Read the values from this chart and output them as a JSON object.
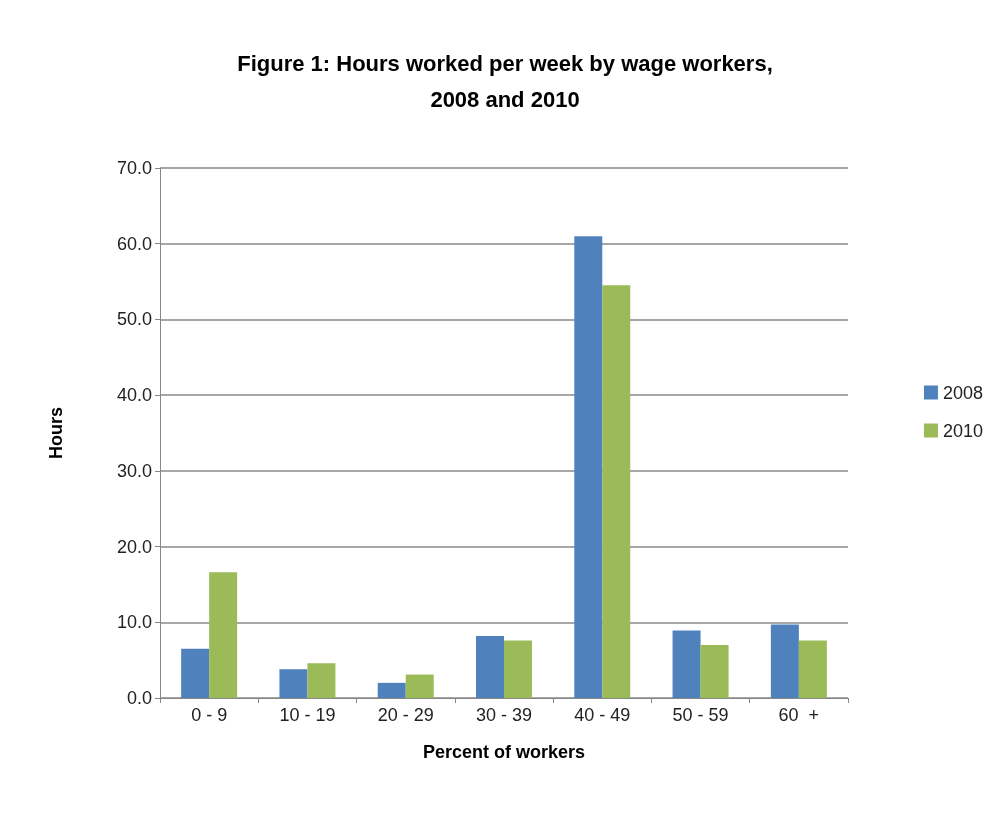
{
  "chart_data": {
    "type": "bar",
    "title": "Figure 1: Hours worked per week by wage workers,\n2008 and 2010",
    "xlabel": "Percent of workers",
    "ylabel": "Hours",
    "categories": [
      "0 - 9",
      "10 - 19",
      "20 - 29",
      "30 - 39",
      "40 - 49",
      "50 - 59",
      "60  +"
    ],
    "series": [
      {
        "name": "2008",
        "color": "#4f81bd",
        "values": [
          6.5,
          3.8,
          2.0,
          8.2,
          61.0,
          8.9,
          9.7
        ]
      },
      {
        "name": "2010",
        "color": "#9bbb59",
        "values": [
          16.6,
          4.6,
          3.1,
          7.6,
          54.5,
          7.0,
          7.6
        ]
      }
    ],
    "ylim": [
      0,
      70
    ],
    "yticks": [
      {
        "value": 0,
        "label": "0.0"
      },
      {
        "value": 10,
        "label": "10.0"
      },
      {
        "value": 20,
        "label": "20.0"
      },
      {
        "value": 30,
        "label": "30.0"
      },
      {
        "value": 40,
        "label": "40.0"
      },
      {
        "value": 50,
        "label": "50.0"
      },
      {
        "value": 60,
        "label": "60.0"
      },
      {
        "value": 70,
        "label": "70.0"
      }
    ],
    "grid": "y",
    "legend": "right"
  }
}
